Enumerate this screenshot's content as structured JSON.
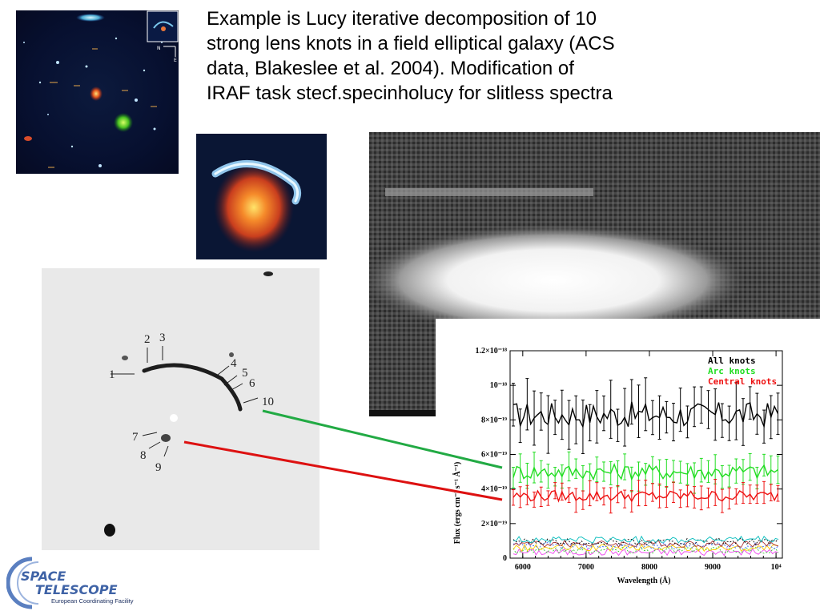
{
  "caption": {
    "line1": "Example is Lucy iterative decomposition of 10",
    "line2": "strong lens knots in a field elliptical galaxy (ACS",
    "line3": "data, Blakeslee et al. 2004). Modification of",
    "line4": "IRAF task stecf.specinholucy for slitless spectra"
  },
  "field_image": {
    "compass_n": "N",
    "compass_e": "E"
  },
  "lens_panel": {
    "knot_labels": [
      "1",
      "2",
      "3",
      "4",
      "5",
      "6",
      "7",
      "8",
      "9",
      "10"
    ]
  },
  "chart_data": {
    "type": "line",
    "xlabel": "Wavelength (Å)",
    "ylabel": "Flux (ergs cm⁻² s⁻¹ Å⁻¹)",
    "xlim": [
      5800,
      10100
    ],
    "ylim": [
      0,
      1.2e-18
    ],
    "x_ticks": [
      "6000",
      "7000",
      "8000",
      "9000",
      "10⁴"
    ],
    "y_ticks": [
      "0",
      "2×10⁻¹⁹",
      "4×10⁻¹⁹",
      "6×10⁻¹⁹",
      "8×10⁻¹⁹",
      "10⁻¹⁸",
      "1.2×10⁻¹⁸"
    ],
    "series": [
      {
        "name": "All knots",
        "color": "#000000",
        "level": 8.3e-19,
        "errorbar": 1.3e-19
      },
      {
        "name": "Arc knots",
        "color": "#22dd22",
        "level": 5e-19,
        "errorbar": 7e-20
      },
      {
        "name": "Central knots",
        "color": "#ee1111",
        "level": 3.6e-19,
        "errorbar": 6e-20
      }
    ],
    "legend_position": "top-right"
  },
  "logo": {
    "word1": "SPACE",
    "word2": "TELESCOPE",
    "subtitle": "European Coordinating Facility"
  },
  "colors": {
    "green_connector": "#22aa44",
    "red_connector": "#dd1111"
  }
}
